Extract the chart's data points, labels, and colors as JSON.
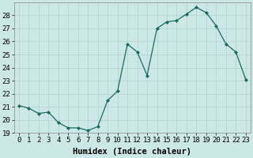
{
  "xlabel": "Humidex (Indice chaleur)",
  "x_values": [
    0,
    1,
    2,
    3,
    4,
    5,
    6,
    7,
    8,
    9,
    10,
    11,
    12,
    13,
    14,
    15,
    16,
    17,
    18,
    19,
    20,
    21,
    22,
    23
  ],
  "y_values": [
    21.1,
    20.9,
    20.5,
    20.6,
    19.8,
    19.4,
    19.4,
    19.2,
    19.5,
    21.5,
    22.2,
    25.8,
    25.2,
    23.4,
    27.0,
    27.5,
    27.6,
    28.1,
    28.6,
    28.2,
    27.2,
    25.8,
    25.2,
    23.1
  ],
  "line_color": "#1a6b5a",
  "marker_color": "#1a6b5a",
  "background_color": "#cce8e6",
  "grid_color": "#b0d0ce",
  "ylim": [
    19,
    29
  ],
  "yticks": [
    19,
    20,
    21,
    22,
    23,
    24,
    25,
    26,
    27,
    28
  ],
  "tick_fontsize": 6.5,
  "label_fontsize": 7.5,
  "marker": "D",
  "marker_size": 2.0,
  "line_width": 0.9
}
